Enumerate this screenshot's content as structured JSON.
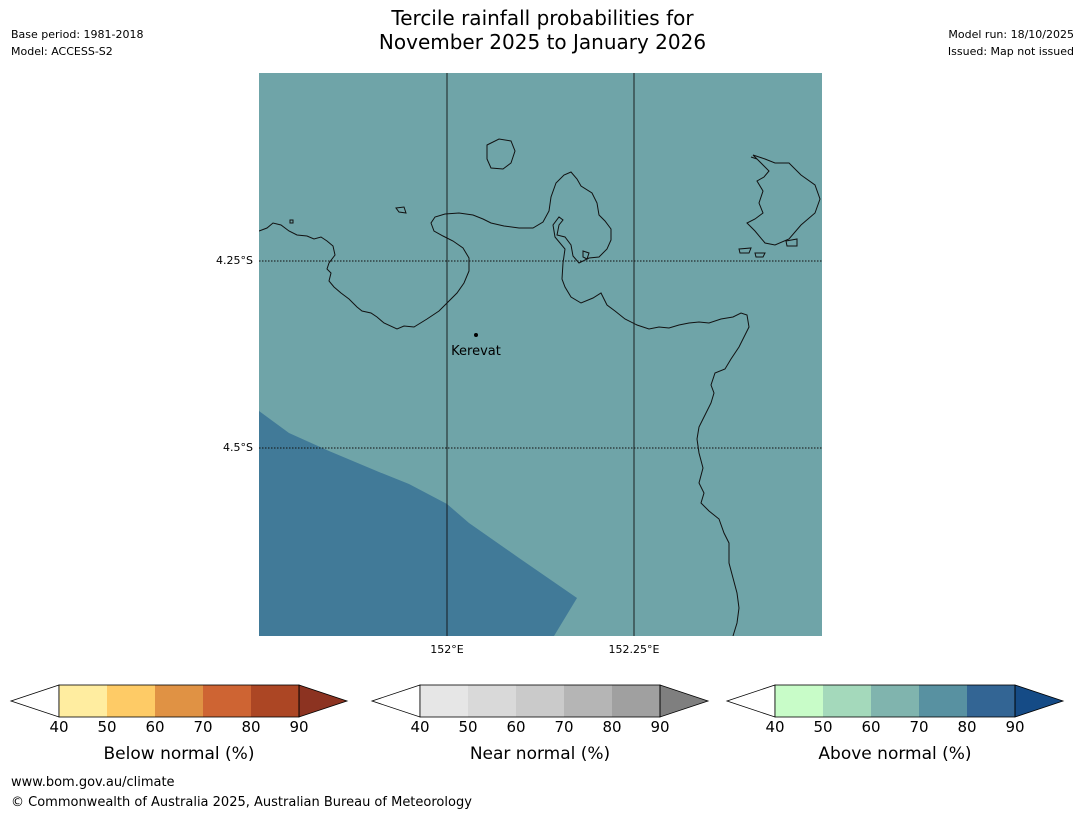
{
  "header": {
    "title_line1": "Tercile rainfall probabilities for",
    "title_line2": "November 2025 to January 2026",
    "base_period": "Base period: 1981-2018",
    "model": "Model: ACCESS-S2",
    "model_run": "Model run: 18/10/2025",
    "issued": "Issued: Map not issued"
  },
  "map": {
    "background_color": "#6fa4a8",
    "region_color": "#417a98",
    "lat_labels": [
      "4.25°S",
      "4.5°S"
    ],
    "lon_labels": [
      "152°E",
      "152.25°E"
    ],
    "place_label": "Kerevat"
  },
  "colorbars": [
    {
      "title": "Below normal (%)",
      "ticks": [
        "40",
        "50",
        "60",
        "70",
        "80",
        "90"
      ],
      "colors": [
        "#ffeda0",
        "#fecb66",
        "#e09244",
        "#ce6433",
        "#ac4624"
      ],
      "arrow_color": "#8c3321"
    },
    {
      "title": "Near normal (%)",
      "ticks": [
        "40",
        "50",
        "60",
        "70",
        "80",
        "90"
      ],
      "colors": [
        "#e6e6e6",
        "#d9d9d9",
        "#cacaca",
        "#b5b5b5",
        "#a0a0a0"
      ],
      "arrow_color": "#7f7f7f"
    },
    {
      "title": "Above normal (%)",
      "ticks": [
        "40",
        "50",
        "60",
        "70",
        "80",
        "90"
      ],
      "colors": [
        "#c8fcc8",
        "#a4d9bb",
        "#80b4ae",
        "#5891a1",
        "#336594"
      ],
      "arrow_color": "#154b86"
    }
  ],
  "footer": {
    "url": "www.bom.gov.au/climate",
    "copyright": "© Commonwealth of Australia 2025, Australian Bureau of Meteorology"
  }
}
